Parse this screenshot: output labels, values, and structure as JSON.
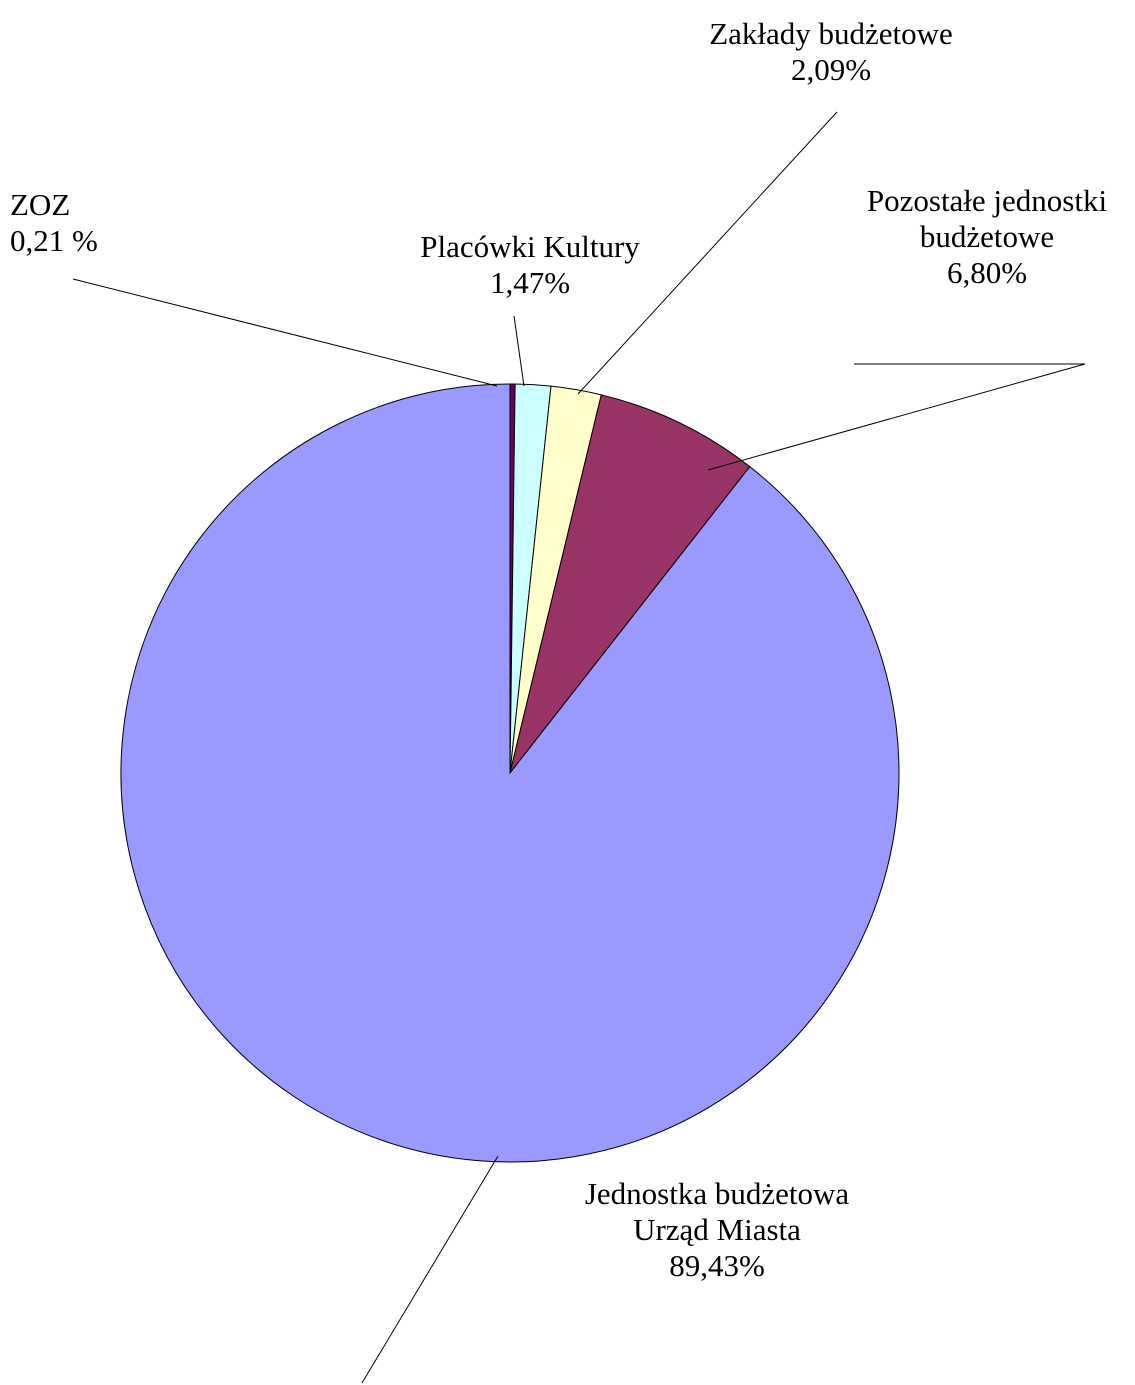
{
  "chart_data": {
    "type": "pie",
    "title": "",
    "start_angle_deg": 0,
    "direction": "clockwise",
    "slices": [
      {
        "label": [
          "ZOZ",
          "0,21 %"
        ],
        "value": 0.21,
        "color": "#660066",
        "align": "start"
      },
      {
        "label": [
          "Placówki Kultury",
          "1,47%"
        ],
        "value": 1.47,
        "color": "#ccffff",
        "align": "middle"
      },
      {
        "label": [
          "Zakłady budżetowe",
          "2,09%"
        ],
        "value": 2.09,
        "color": "#ffffcc",
        "align": "middle"
      },
      {
        "label": [
          "Pozostałe jednostki",
          "budżetowe",
          "6,80%"
        ],
        "value": 6.8,
        "color": "#993366",
        "align": "middle"
      },
      {
        "label": [
          "Jednostka budżetowa",
          "Urząd Miasta",
          "89,43%"
        ],
        "value": 89.43,
        "color": "#9999ff",
        "align": "middle"
      }
    ]
  }
}
